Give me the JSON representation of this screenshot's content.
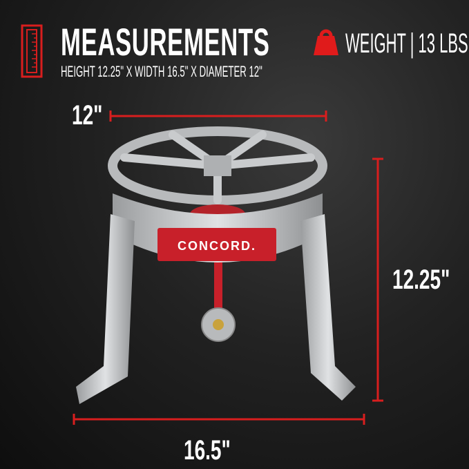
{
  "header": {
    "title": "MEASUREMENTS",
    "subtitle": "HEIGHT 12.25\" X WIDTH 16.5\" X DIAMETER 12\"",
    "weight": "WEIGHT | 13 LBS",
    "icons": [
      "ruler-icon",
      "weight-icon"
    ]
  },
  "dimensions": {
    "diameter": "12\"",
    "height": "12.25\"",
    "width": "16.5\""
  },
  "product": {
    "brand_label": "CONCORD."
  },
  "colors": {
    "accent": "#d81e1e",
    "band": "#c8202a",
    "metal": "#c4c6c8",
    "background": "#1a1a1a"
  }
}
